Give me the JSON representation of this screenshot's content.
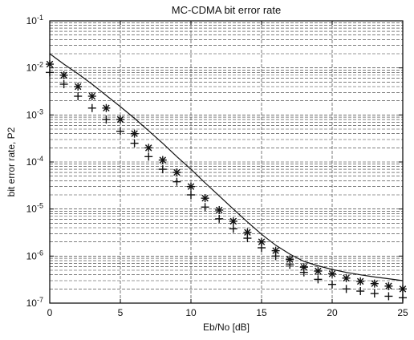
{
  "chart_data": {
    "type": "line",
    "title": "MC-CDMA bit error rate",
    "xlabel": "Eb/No [dB]",
    "ylabel": "bit error rate, P2",
    "xlim": [
      0,
      25
    ],
    "ylim": [
      1e-07,
      0.1
    ],
    "yscale": "log",
    "grid": true,
    "x_ticks": [
      0,
      5,
      10,
      15,
      20,
      25
    ],
    "x_tick_labels": [
      "0",
      "5",
      "10",
      "15",
      "20",
      "25"
    ],
    "y_ticks": [
      0.1,
      0.01,
      0.001,
      0.0001,
      1e-05,
      1e-06,
      1e-07
    ],
    "y_tick_labels": [
      "10-1",
      "10-2",
      "10-3",
      "10-4",
      "10-5",
      "10-6",
      "10-7"
    ],
    "series": [
      {
        "marker": "line",
        "x": [
          0,
          1,
          2,
          3,
          4,
          5,
          6,
          7,
          8,
          9,
          10,
          11,
          12,
          13,
          14,
          15,
          16,
          17,
          18,
          19,
          20,
          21,
          22,
          23,
          24,
          25
        ],
        "y": [
          0.02,
          0.012,
          0.0075,
          0.0045,
          0.0026,
          0.0015,
          0.00085,
          0.00046,
          0.00025,
          0.00013,
          7e-05,
          3.6e-05,
          1.9e-05,
          1e-05,
          5.3e-06,
          2.9e-06,
          1.7e-06,
          1.1e-06,
          7.7e-07,
          6.2e-07,
          5.2e-07,
          4.5e-07,
          4e-07,
          3.6e-07,
          3.3e-07,
          3e-07
        ]
      },
      {
        "marker": "*",
        "x": [
          0,
          1,
          2,
          3,
          4,
          5,
          6,
          7,
          8,
          9,
          10,
          11,
          12,
          13,
          14,
          15,
          16,
          17,
          18,
          19,
          20,
          21,
          22,
          23,
          24,
          25
        ],
        "y": [
          0.012,
          0.007,
          0.004,
          0.0025,
          0.0014,
          0.0008,
          0.0004,
          0.0002,
          0.00011,
          6e-05,
          3e-05,
          1.7e-05,
          9.5e-06,
          5.5e-06,
          3.2e-06,
          2e-06,
          1.3e-06,
          8.5e-07,
          5.8e-07,
          4.8e-07,
          4.2e-07,
          3.4e-07,
          2.9e-07,
          2.6e-07,
          2.3e-07,
          2e-07
        ]
      },
      {
        "marker": "+",
        "x": [
          0,
          1,
          2,
          3,
          4,
          5,
          6,
          7,
          8,
          9,
          10,
          11,
          12,
          13,
          14,
          15,
          16,
          17,
          18,
          19,
          20,
          21,
          22,
          23,
          24,
          25
        ],
        "y": [
          0.008,
          0.0045,
          0.0025,
          0.0014,
          0.0008,
          0.00045,
          0.00025,
          0.00013,
          7e-05,
          3.8e-05,
          2e-05,
          1.1e-05,
          6.2e-06,
          3.8e-06,
          2.4e-06,
          1.5e-06,
          1e-06,
          6.5e-07,
          4.5e-07,
          3.2e-07,
          2.5e-07,
          2e-07,
          1.8e-07,
          1.6e-07,
          1.4e-07,
          1.3e-07
        ]
      }
    ]
  }
}
